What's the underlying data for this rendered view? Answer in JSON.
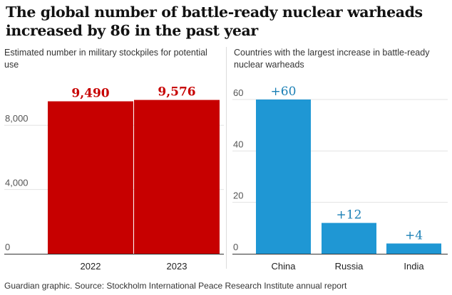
{
  "title": "The global number of battle-ready nuclear warheads increased by 86 in the past year",
  "footer": "Guardian graphic. Source: Stockholm International Peace Research Institute annual report",
  "chart_data": [
    {
      "type": "bar",
      "subtitle": "Estimated number in military stockpiles for potential use",
      "categories": [
        "2022",
        "2023"
      ],
      "values": [
        9490,
        9576
      ],
      "value_labels": [
        "9,490",
        "9,576"
      ],
      "ylim": [
        0,
        10000
      ],
      "yticks": [
        0,
        4000,
        8000
      ],
      "ytick_labels": [
        "0",
        "4,000",
        "8,000"
      ],
      "color": "#c70000",
      "grid": true
    },
    {
      "type": "bar",
      "subtitle": "Countries with the largest increase in battle-ready nuclear warheads",
      "categories": [
        "China",
        "Russia",
        "India"
      ],
      "values": [
        60,
        12,
        4
      ],
      "value_labels": [
        "+60",
        "+12",
        "+4"
      ],
      "ylim": [
        0,
        61
      ],
      "yticks": [
        0,
        20,
        40,
        60
      ],
      "ytick_labels": [
        "0",
        "20",
        "40",
        "60"
      ],
      "color": "#1f97d4",
      "label_color": "#1a7fb5",
      "grid": true
    }
  ]
}
